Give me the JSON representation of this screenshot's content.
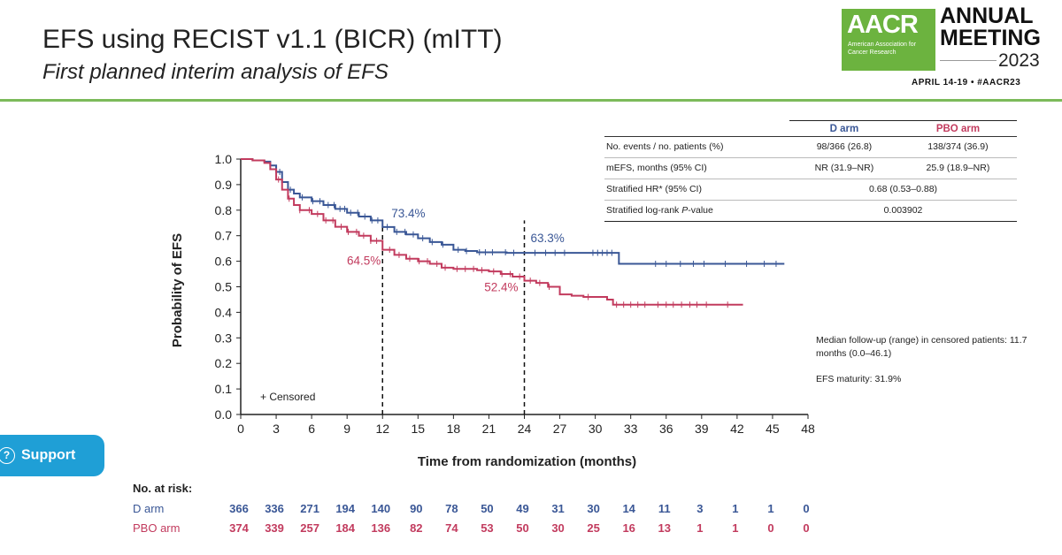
{
  "header": {
    "title": "EFS using RECIST v1.1 (BICR) (mITT)",
    "subtitle": "First planned interim analysis of EFS"
  },
  "logo": {
    "name": "AACR",
    "org_line": "American Association for Cancer Research",
    "meeting": "ANNUAL",
    "meeting2": "MEETING",
    "year": "2023",
    "dates": "APRIL 14-19 • #AACR23"
  },
  "stats_table": {
    "col_d": "D arm",
    "col_pbo": "PBO arm",
    "rows": [
      {
        "label": "No. events / no. patients (%)",
        "d": "98/366 (26.8)",
        "pbo": "138/374 (36.9)"
      },
      {
        "label": "mEFS, months (95% CI)",
        "d": "NR (31.9–NR)",
        "pbo": "25.9 (18.9–NR)"
      }
    ],
    "hr_label": "Stratified HR* (95% CI)",
    "hr_value": "0.68 (0.53–0.88)",
    "p_label_pre": "Stratified log-rank ",
    "p_label_italic": "P",
    "p_label_post": "-value",
    "p_value": "0.003902"
  },
  "notes": {
    "followup": "Median follow-up (range) in censored patients: 11.7 months (0.0–46.1)",
    "maturity": "EFS maturity: 31.9%"
  },
  "support": {
    "label": "Support"
  },
  "colors": {
    "d": "#3a5796",
    "pbo": "#c23b5e",
    "axis": "#222222",
    "accent": "#7cba5a",
    "support": "#1f9fd6"
  },
  "chart_data": {
    "type": "line",
    "subtype": "kaplan-meier",
    "xlabel": "Time from randomization (months)",
    "ylabel": "Probability of EFS",
    "xlim": [
      0,
      48
    ],
    "ylim": [
      0,
      1.0
    ],
    "xticks": [
      0,
      3,
      6,
      9,
      12,
      15,
      18,
      21,
      24,
      27,
      30,
      33,
      36,
      39,
      42,
      45,
      48
    ],
    "yticks": [
      0.0,
      0.1,
      0.2,
      0.3,
      0.4,
      0.5,
      0.6,
      0.7,
      0.8,
      0.9,
      1.0
    ],
    "legend": "+ Censored",
    "series": [
      {
        "name": "D arm",
        "color": "#3a5796",
        "points": [
          [
            0,
            1.0
          ],
          [
            1,
            0.995
          ],
          [
            2,
            0.99
          ],
          [
            2.5,
            0.975
          ],
          [
            3,
            0.95
          ],
          [
            3.5,
            0.91
          ],
          [
            4,
            0.88
          ],
          [
            4.5,
            0.865
          ],
          [
            5,
            0.85
          ],
          [
            6,
            0.835
          ],
          [
            7,
            0.82
          ],
          [
            8,
            0.805
          ],
          [
            9,
            0.79
          ],
          [
            10,
            0.775
          ],
          [
            11,
            0.76
          ],
          [
            12,
            0.734
          ],
          [
            13,
            0.715
          ],
          [
            14,
            0.705
          ],
          [
            15,
            0.69
          ],
          [
            16,
            0.675
          ],
          [
            17,
            0.665
          ],
          [
            18,
            0.645
          ],
          [
            19,
            0.64
          ],
          [
            20,
            0.635
          ],
          [
            22,
            0.635
          ],
          [
            22.5,
            0.633
          ],
          [
            24,
            0.633
          ],
          [
            28,
            0.633
          ],
          [
            30,
            0.633
          ],
          [
            31.9,
            0.633
          ],
          [
            32,
            0.59
          ],
          [
            36,
            0.59
          ],
          [
            40,
            0.59
          ],
          [
            46,
            0.59
          ]
        ],
        "censored": [
          3.3,
          4.2,
          5.2,
          6.1,
          6.7,
          7.4,
          7.9,
          8.4,
          8.8,
          9.3,
          9.9,
          10.5,
          11.1,
          11.6,
          12.4,
          13.2,
          13.9,
          14.6,
          15.4,
          16.2,
          17.1,
          18.4,
          19.1,
          20.2,
          20.7,
          21.3,
          22.4,
          23.1,
          24.9,
          25.8,
          26.6,
          27.4,
          29.8,
          30.2,
          30.6,
          31.0,
          31.4,
          35.1,
          36.0,
          37.2,
          38.3,
          39.2,
          41.0,
          42.8,
          44.3,
          45.3
        ]
      },
      {
        "name": "PBO arm",
        "color": "#c23b5e",
        "points": [
          [
            0,
            1.0
          ],
          [
            1,
            0.995
          ],
          [
            2,
            0.985
          ],
          [
            2.5,
            0.96
          ],
          [
            3,
            0.92
          ],
          [
            3.5,
            0.88
          ],
          [
            4,
            0.845
          ],
          [
            4.5,
            0.82
          ],
          [
            5,
            0.8
          ],
          [
            6,
            0.785
          ],
          [
            7,
            0.76
          ],
          [
            8,
            0.735
          ],
          [
            9,
            0.715
          ],
          [
            10,
            0.7
          ],
          [
            11,
            0.68
          ],
          [
            12,
            0.645
          ],
          [
            13,
            0.625
          ],
          [
            14,
            0.61
          ],
          [
            15,
            0.6
          ],
          [
            16,
            0.59
          ],
          [
            17,
            0.575
          ],
          [
            18,
            0.57
          ],
          [
            20,
            0.565
          ],
          [
            21,
            0.56
          ],
          [
            22,
            0.55
          ],
          [
            23,
            0.54
          ],
          [
            24,
            0.524
          ],
          [
            25,
            0.515
          ],
          [
            26,
            0.5
          ],
          [
            27,
            0.47
          ],
          [
            28,
            0.465
          ],
          [
            29,
            0.46
          ],
          [
            30,
            0.46
          ],
          [
            31,
            0.45
          ],
          [
            31.5,
            0.43
          ],
          [
            34,
            0.43
          ],
          [
            38,
            0.43
          ],
          [
            42.5,
            0.43
          ]
        ],
        "censored": [
          3.2,
          4.1,
          5.0,
          5.8,
          6.5,
          7.2,
          7.8,
          8.5,
          9.1,
          9.8,
          10.4,
          11.0,
          11.5,
          12.6,
          13.4,
          14.3,
          15.1,
          15.8,
          16.6,
          17.3,
          18.3,
          19.0,
          19.7,
          20.4,
          21.4,
          22.1,
          22.8,
          23.6,
          24.5,
          25.3,
          26.1,
          29.4,
          31.8,
          32.4,
          33.0,
          33.6,
          34.2,
          35.3,
          36.0,
          36.6,
          37.3,
          38.0,
          38.6,
          39.4,
          41.2
        ]
      }
    ],
    "annotations": [
      {
        "text": "73.4%",
        "x": 12,
        "y": 0.734,
        "series": "D arm"
      },
      {
        "text": "64.5%",
        "x": 12,
        "y": 0.645,
        "series": "PBO arm"
      },
      {
        "text": "63.3%",
        "x": 24,
        "y": 0.633,
        "series": "D arm"
      },
      {
        "text": "52.4%",
        "x": 24,
        "y": 0.524,
        "series": "PBO arm"
      }
    ],
    "reference_lines_x": [
      12,
      24
    ],
    "at_risk": {
      "title": "No. at risk:",
      "times": [
        0,
        3,
        6,
        9,
        12,
        15,
        18,
        21,
        24,
        27,
        30,
        33,
        36,
        39,
        42,
        45,
        48
      ],
      "rows": [
        {
          "name": "D arm",
          "color": "#3a5796",
          "values": [
            366,
            336,
            271,
            194,
            140,
            90,
            78,
            50,
            49,
            31,
            30,
            14,
            11,
            3,
            1,
            1,
            0
          ]
        },
        {
          "name": "PBO arm",
          "color": "#c23b5e",
          "values": [
            374,
            339,
            257,
            184,
            136,
            82,
            74,
            53,
            50,
            30,
            25,
            16,
            13,
            1,
            1,
            0,
            0
          ]
        }
      ]
    }
  }
}
